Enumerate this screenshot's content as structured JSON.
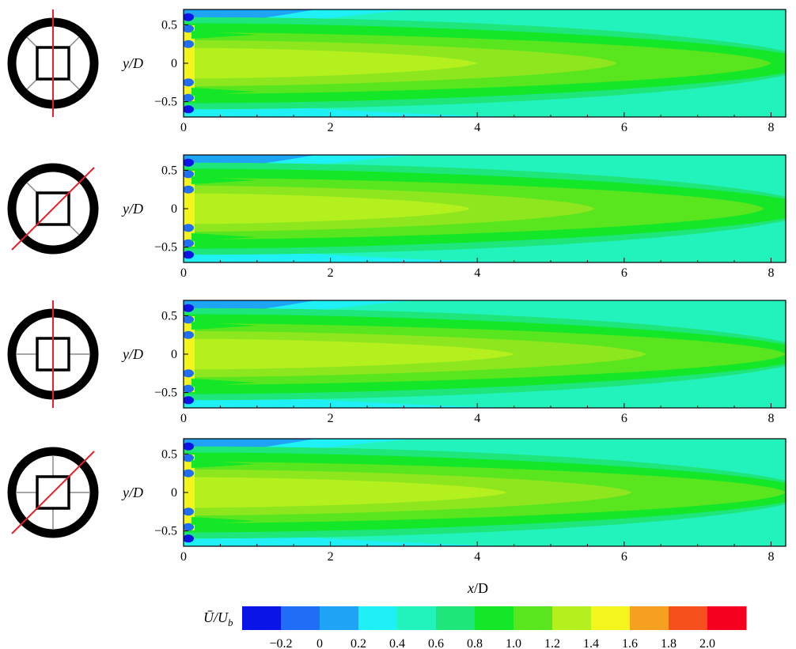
{
  "figure": {
    "ylabel_html": [
      "y",
      "/D"
    ],
    "xlabel_html": [
      "x",
      "/D"
    ],
    "colorbar_label": [
      "Ū",
      "/U",
      "b"
    ]
  },
  "colors": {
    "levels": [
      "#0a14e6",
      "#1f6ef5",
      "#1fa3f5",
      "#1ff0f5",
      "#22f2bb",
      "#1ee67a",
      "#14e628",
      "#5ae61e",
      "#b4f01e",
      "#f5f51e",
      "#f5a01e",
      "#f5501e",
      "#f5001e"
    ],
    "frame": "#000000",
    "cut_line": "#e8202a",
    "support_line": "#888888"
  },
  "chart_data": [
    {
      "type": "heatmap",
      "panel": 1,
      "configuration_icon": {
        "cut_plane": "vertical",
        "supports": "diagonal"
      },
      "xlabel": "",
      "ylabel": "y/D",
      "xlim": [
        0,
        8.2
      ],
      "ylim": [
        -0.7,
        0.7
      ],
      "xticks": [
        "0",
        "2",
        "4",
        "6",
        "8"
      ],
      "yticks": [
        "0.5",
        "0",
        "−0.5"
      ],
      "core_length_1p4_xD": 4.0,
      "core_length_1p2_xD": 5.9,
      "core_length_1p0_xD": 8.0
    },
    {
      "type": "heatmap",
      "panel": 2,
      "configuration_icon": {
        "cut_plane": "diagonal",
        "supports": "diagonal"
      },
      "xlabel": "",
      "ylabel": "y/D",
      "xlim": [
        0,
        8.2
      ],
      "ylim": [
        -0.7,
        0.7
      ],
      "xticks": [
        "0",
        "2",
        "4",
        "6",
        "8"
      ],
      "yticks": [
        "0.5",
        "0",
        "−0.5"
      ],
      "core_length_1p4_xD": 3.9,
      "core_length_1p2_xD": 5.6,
      "core_length_1p0_xD": 7.9
    },
    {
      "type": "heatmap",
      "panel": 3,
      "configuration_icon": {
        "cut_plane": "vertical",
        "supports": "cross"
      },
      "xlabel": "",
      "ylabel": "y/D",
      "xlim": [
        0,
        8.2
      ],
      "ylim": [
        -0.7,
        0.7
      ],
      "xticks": [
        "0",
        "2",
        "4",
        "6",
        "8"
      ],
      "yticks": [
        "0.5",
        "0",
        "−0.5"
      ],
      "core_length_1p4_xD": 4.5,
      "core_length_1p2_xD": 6.3,
      "core_length_1p0_xD": 8.2
    },
    {
      "type": "heatmap",
      "panel": 4,
      "configuration_icon": {
        "cut_plane": "diagonal",
        "supports": "cross"
      },
      "xlabel": "x/D",
      "ylabel": "y/D",
      "xlim": [
        0,
        8.2
      ],
      "ylim": [
        -0.7,
        0.7
      ],
      "xticks": [
        "0",
        "2",
        "4",
        "6",
        "8"
      ],
      "yticks": [
        "0.5",
        "0",
        "−0.5"
      ],
      "core_length_1p4_xD": 4.4,
      "core_length_1p2_xD": 6.1,
      "core_length_1p0_xD": 8.2
    }
  ],
  "colorbar": {
    "label": "Ū/U_b",
    "ticks": [
      "−0.2",
      "0",
      "0.2",
      "0.4",
      "0.6",
      "0.8",
      "1.0",
      "1.2",
      "1.4",
      "1.6",
      "1.8",
      "2.0"
    ],
    "range": [
      -0.3,
      2.1
    ]
  }
}
